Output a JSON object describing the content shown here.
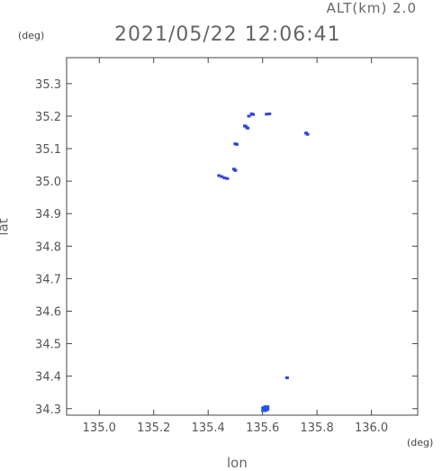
{
  "header": {
    "alt_label": "ALT(km) 2.0",
    "timestamp": "2021/05/22 12:06:41",
    "y_unit": "(deg)",
    "x_unit": "(deg)"
  },
  "chart_data": {
    "type": "scatter",
    "xlabel": "lon",
    "ylabel": "lat",
    "xlim": [
      134.88,
      136.17
    ],
    "ylim": [
      34.28,
      35.38
    ],
    "x_ticks": [
      "135.0",
      "135.2",
      "135.4",
      "135.6",
      "135.8",
      "136.0"
    ],
    "x_tick_values": [
      135.0,
      135.2,
      135.4,
      135.6,
      135.8,
      136.0
    ],
    "y_ticks": [
      "35.3",
      "35.2",
      "35.1",
      "35.0",
      "34.9",
      "34.8",
      "34.7",
      "34.6",
      "34.5",
      "34.4",
      "34.3"
    ],
    "y_tick_values": [
      35.3,
      35.2,
      35.1,
      35.0,
      34.9,
      34.8,
      34.7,
      34.6,
      34.5,
      34.4,
      34.3
    ],
    "series": [
      {
        "color": "#3344dd",
        "points": [
          {
            "x": 135.44,
            "y": 35.017
          },
          {
            "x": 135.45,
            "y": 35.014
          },
          {
            "x": 135.46,
            "y": 35.01
          },
          {
            "x": 135.47,
            "y": 35.008
          },
          {
            "x": 135.495,
            "y": 35.037
          },
          {
            "x": 135.5,
            "y": 35.033
          },
          {
            "x": 135.5,
            "y": 35.115
          },
          {
            "x": 135.505,
            "y": 35.113
          },
          {
            "x": 135.535,
            "y": 35.17
          },
          {
            "x": 135.54,
            "y": 35.167
          },
          {
            "x": 135.545,
            "y": 35.163
          },
          {
            "x": 135.55,
            "y": 35.2
          },
          {
            "x": 135.56,
            "y": 35.207
          },
          {
            "x": 135.565,
            "y": 35.205
          },
          {
            "x": 135.615,
            "y": 35.206
          },
          {
            "x": 135.625,
            "y": 35.207
          },
          {
            "x": 135.76,
            "y": 35.148
          },
          {
            "x": 135.765,
            "y": 35.144
          },
          {
            "x": 135.69,
            "y": 34.395
          }
        ]
      },
      {
        "color": "#2255ee",
        "points": [
          {
            "x": 135.61,
            "y": 34.3
          },
          {
            "x": 135.615,
            "y": 34.302
          },
          {
            "x": 135.605,
            "y": 34.298
          }
        ]
      }
    ]
  }
}
